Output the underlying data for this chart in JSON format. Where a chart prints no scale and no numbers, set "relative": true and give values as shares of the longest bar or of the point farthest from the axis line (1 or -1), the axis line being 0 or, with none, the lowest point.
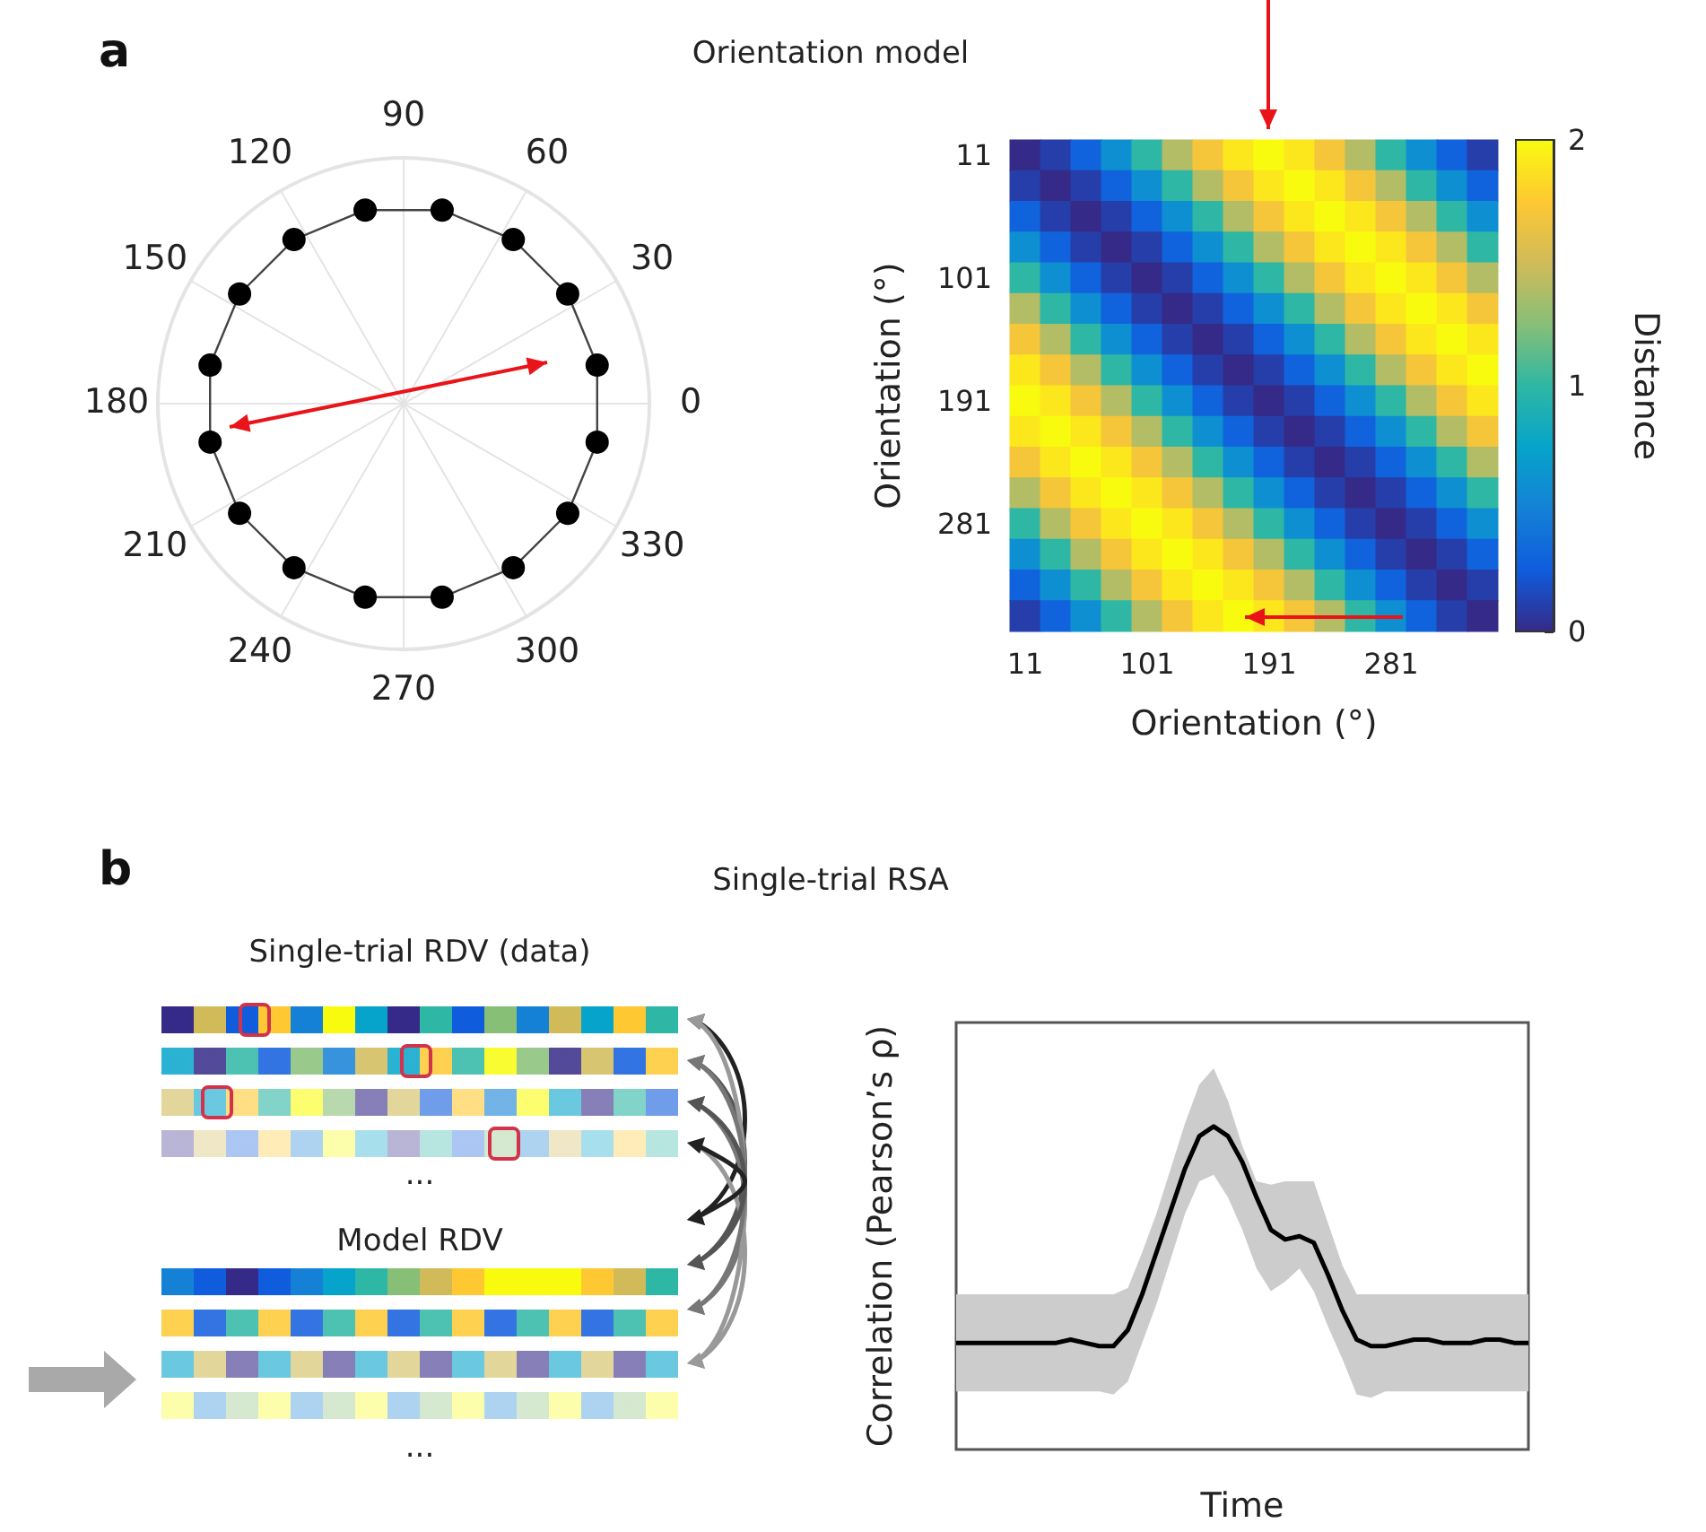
{
  "chart_data": [
    {
      "type": "other",
      "title": "Orientation model",
      "annotations": [
        "a",
        "90",
        "60",
        "30",
        "0",
        "330",
        "300",
        "270",
        "240",
        "210",
        "180",
        "150",
        "120"
      ]
    },
    {
      "type": "heatmap",
      "xlabel": "Orientation (°)",
      "ylabel": "Orientation (°)",
      "clabel": "Distance",
      "clim": [
        0,
        2
      ],
      "cticks": [
        0,
        1,
        2
      ],
      "categories": [
        "11",
        null,
        null,
        null,
        "101",
        null,
        null,
        null,
        "191",
        null,
        null,
        null,
        "281",
        null,
        null,
        null
      ],
      "y_categories": [
        "11",
        null,
        null,
        null,
        "101",
        null,
        null,
        null,
        "191",
        null,
        null,
        null,
        "281",
        null,
        null,
        null
      ],
      "cells": [
        [
          0,
          0.1,
          0.3,
          0.6,
          1,
          1.4,
          1.7,
          1.9,
          2,
          1.9,
          1.7,
          1.4,
          1,
          0.6,
          0.3,
          0.1
        ],
        [
          0.1,
          0,
          0.1,
          0.3,
          0.6,
          1,
          1.4,
          1.7,
          1.9,
          2,
          1.9,
          1.7,
          1.4,
          1,
          0.6,
          0.3
        ],
        [
          0.3,
          0.1,
          0,
          0.1,
          0.3,
          0.6,
          1,
          1.4,
          1.7,
          1.9,
          2,
          1.9,
          1.7,
          1.4,
          1,
          0.6
        ],
        [
          0.6,
          0.3,
          0.1,
          0,
          0.1,
          0.3,
          0.6,
          1,
          1.4,
          1.7,
          1.9,
          2,
          1.9,
          1.7,
          1.4,
          1
        ],
        [
          1,
          0.6,
          0.3,
          0.1,
          0,
          0.1,
          0.3,
          0.6,
          1,
          1.4,
          1.7,
          1.9,
          2,
          1.9,
          1.7,
          1.4
        ],
        [
          1.4,
          1,
          0.6,
          0.3,
          0.1,
          0,
          0.1,
          0.3,
          0.6,
          1,
          1.4,
          1.7,
          1.9,
          2,
          1.9,
          1.7
        ],
        [
          1.7,
          1.4,
          1,
          0.6,
          0.3,
          0.1,
          0,
          0.1,
          0.3,
          0.6,
          1,
          1.4,
          1.7,
          1.9,
          2,
          1.9
        ],
        [
          1.9,
          1.7,
          1.4,
          1,
          0.6,
          0.3,
          0.1,
          0,
          0.1,
          0.3,
          0.6,
          1,
          1.4,
          1.7,
          1.9,
          2
        ],
        [
          2,
          1.9,
          1.7,
          1.4,
          1,
          0.6,
          0.3,
          0.1,
          0,
          0.1,
          0.3,
          0.6,
          1,
          1.4,
          1.7,
          1.9
        ],
        [
          1.9,
          2,
          1.9,
          1.7,
          1.4,
          1,
          0.6,
          0.3,
          0.1,
          0,
          0.1,
          0.3,
          0.6,
          1,
          1.4,
          1.7
        ],
        [
          1.7,
          1.9,
          2,
          1.9,
          1.7,
          1.4,
          1,
          0.6,
          0.3,
          0.1,
          0,
          0.1,
          0.3,
          0.6,
          1,
          1.4
        ],
        [
          1.4,
          1.7,
          1.9,
          2,
          1.9,
          1.7,
          1.4,
          1,
          0.6,
          0.3,
          0.1,
          0,
          0.1,
          0.3,
          0.6,
          1
        ],
        [
          1,
          1.4,
          1.7,
          1.9,
          2,
          1.9,
          1.7,
          1.4,
          1,
          0.6,
          0.3,
          0.1,
          0,
          0.1,
          0.3,
          0.6
        ],
        [
          0.6,
          1,
          1.4,
          1.7,
          1.9,
          2,
          1.9,
          1.7,
          1.4,
          1,
          0.6,
          0.3,
          0.1,
          0,
          0.1,
          0.3
        ],
        [
          0.3,
          0.6,
          1,
          1.4,
          1.7,
          1.9,
          2,
          1.9,
          1.7,
          1.4,
          1,
          0.6,
          0.3,
          0.1,
          0,
          0.1
        ],
        [
          0.1,
          0.3,
          0.6,
          1,
          1.4,
          1.7,
          1.9,
          2,
          1.9,
          1.7,
          1.4,
          1,
          0.6,
          0.3,
          0.1,
          0
        ]
      ]
    },
    {
      "type": "other",
      "title": "Single-trial RSA",
      "annotations": [
        "b",
        "Single-trial RDV (data)",
        "...",
        "Model RDV",
        "..."
      ]
    },
    {
      "type": "line",
      "xlabel": "Time",
      "ylabel": "Correlation (Pearson’s ρ)",
      "relative": true,
      "categories": [
        null,
        null,
        null,
        null,
        null,
        null,
        null,
        null,
        null,
        null,
        null,
        null,
        null,
        null,
        null,
        null,
        null,
        null,
        null,
        null,
        null,
        null,
        null,
        null,
        null,
        null,
        null,
        null,
        null,
        null,
        null,
        null,
        null,
        null,
        null,
        null,
        null,
        null,
        null,
        null,
        null
      ],
      "series": [
        {
          "color": "#000000",
          "values": [
            0.33,
            0.33,
            0.33,
            0.33,
            0.33,
            0.33,
            0.33,
            0.33,
            0.34,
            0.33,
            0.32,
            0.32,
            0.37,
            0.48,
            0.61,
            0.74,
            0.87,
            0.97,
            1,
            0.97,
            0.89,
            0.78,
            0.68,
            0.65,
            0.66,
            0.64,
            0.54,
            0.43,
            0.34,
            0.32,
            0.32,
            0.33,
            0.34,
            0.34,
            0.33,
            0.33,
            0.33,
            0.34,
            0.34,
            0.33,
            0.33
          ],
          "upper": [
            0.48,
            0.48,
            0.48,
            0.48,
            0.48,
            0.48,
            0.48,
            0.48,
            0.48,
            0.48,
            0.48,
            0.48,
            0.5,
            0.61,
            0.73,
            0.87,
            1.01,
            1.13,
            1.18,
            1.08,
            0.94,
            0.83,
            0.82,
            0.83,
            0.83,
            0.83,
            0.7,
            0.57,
            0.48,
            0.48,
            0.48,
            0.48,
            0.48,
            0.48,
            0.48,
            0.48,
            0.48,
            0.48,
            0.48,
            0.48,
            0.48
          ],
          "lower": [
            0.18,
            0.18,
            0.18,
            0.18,
            0.18,
            0.18,
            0.18,
            0.18,
            0.18,
            0.18,
            0.18,
            0.17,
            0.21,
            0.33,
            0.45,
            0.59,
            0.73,
            0.83,
            0.85,
            0.78,
            0.68,
            0.56,
            0.49,
            0.52,
            0.56,
            0.49,
            0.38,
            0.28,
            0.17,
            0.16,
            0.18,
            0.18,
            0.18,
            0.18,
            0.18,
            0.18,
            0.18,
            0.18,
            0.18,
            0.18,
            0.18
          ]
        }
      ]
    }
  ]
}
